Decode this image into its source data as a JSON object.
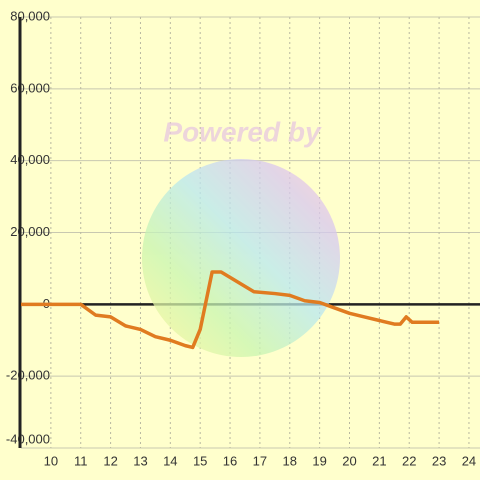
{
  "chart_data": {
    "type": "line",
    "watermark": "Powered by",
    "x": [
      9,
      11,
      11.5,
      12,
      12.5,
      13,
      13.5,
      14,
      14.5,
      14.75,
      15,
      15.4,
      15.7,
      16,
      16.5,
      16.8,
      17.5,
      18,
      18.5,
      19,
      19.5,
      20,
      20.5,
      21,
      21.5,
      21.7,
      21.9,
      22.1,
      23
    ],
    "series": [
      {
        "color": "#e07b20",
        "values": [
          0,
          0,
          -3000,
          -3500,
          -6000,
          -7000,
          -9000,
          -10000,
          -11500,
          -12000,
          -7000,
          9000,
          9000,
          7500,
          5000,
          3500,
          3000,
          2500,
          1000,
          500,
          -1000,
          -2500,
          -3500,
          -4500,
          -5500,
          -5500,
          -3500,
          -5000,
          -5000
        ]
      }
    ],
    "xlim": [
      9,
      24.37
    ],
    "xticks": [
      10,
      11,
      12,
      13,
      14,
      15,
      16,
      17,
      18,
      19,
      20,
      21,
      22,
      23,
      24
    ],
    "ylim": [
      -40000,
      80000
    ],
    "yticks": [
      {
        "value": -40000,
        "label": "-40,000"
      },
      {
        "value": -20000,
        "label": "-20,000"
      },
      0,
      {
        "value": 20000,
        "label": "20,000"
      },
      {
        "value": 40000,
        "label": "40,000"
      },
      {
        "value": 60000,
        "label": "60,000"
      },
      {
        "value": 80000,
        "label": "80,000"
      }
    ],
    "grid": true
  }
}
